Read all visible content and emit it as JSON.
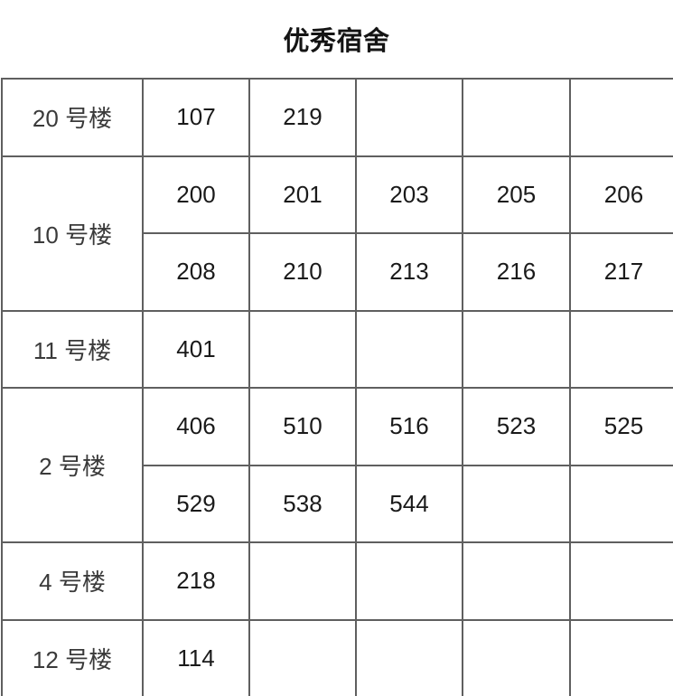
{
  "title": "优秀宿舍",
  "colors": {
    "background": "#ffffff",
    "grid": "#5f5f5f",
    "title_text": "#141414",
    "number_text": "#1a1a1a",
    "label_text": "#3a3a3a"
  },
  "table": {
    "data_columns": 5,
    "groups": [
      {
        "building": "20 号楼",
        "rows": [
          [
            "107",
            "219",
            "",
            "",
            ""
          ]
        ]
      },
      {
        "building": "10 号楼",
        "rows": [
          [
            "200",
            "201",
            "203",
            "205",
            "206"
          ],
          [
            "208",
            "210",
            "213",
            "216",
            "217"
          ]
        ]
      },
      {
        "building": "11 号楼",
        "rows": [
          [
            "401",
            "",
            "",
            "",
            ""
          ]
        ]
      },
      {
        "building": "2 号楼",
        "rows": [
          [
            "406",
            "510",
            "516",
            "523",
            "525"
          ],
          [
            "529",
            "538",
            "544",
            "",
            ""
          ]
        ]
      },
      {
        "building": "4 号楼",
        "rows": [
          [
            "218",
            "",
            "",
            "",
            ""
          ]
        ]
      },
      {
        "building": "12 号楼",
        "rows": [
          [
            "114",
            "",
            "",
            "",
            ""
          ]
        ]
      }
    ]
  }
}
